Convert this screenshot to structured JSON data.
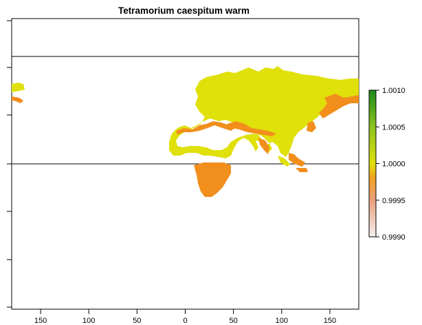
{
  "title": "Tetramorium caespitum warm",
  "colors": {
    "low": "#f5eef0",
    "mid_low": "#e9a07c",
    "orange": "#f28e1c",
    "yellow": "#e0e00a",
    "green_mid": "#8bc41e",
    "green_high": "#1a8a1a",
    "frame": "#000000"
  },
  "chart_data": {
    "type": "heatmap",
    "x_ticks": [
      "150",
      "100",
      "50",
      "0",
      "50",
      "100",
      "150"
    ],
    "x_tick_values": [
      -150,
      -100,
      -50,
      0,
      50,
      100,
      150
    ],
    "xlim": [
      -180,
      180
    ],
    "ylim": [
      -90,
      90
    ],
    "horizontal_lines": [
      0,
      60
    ],
    "legend": {
      "ticks": [
        "1.0010",
        "1.0005",
        "1.0000",
        "0.9995",
        "0.9990"
      ],
      "tick_values": [
        1.001,
        1.0005,
        1.0,
        0.9995,
        0.999
      ],
      "range": [
        0.999,
        1.001
      ]
    },
    "regions": [
      {
        "name": "Eurasia / North Africa",
        "value": 1.0
      },
      {
        "name": "Southern Africa",
        "value": 0.9996
      },
      {
        "name": "Iberia / Mediterranean coasts",
        "value": 0.9996
      },
      {
        "name": "Middle East belt",
        "value": 0.9996
      },
      {
        "name": "South Asia / Himalaya margin",
        "value": 0.9996
      },
      {
        "name": "East Asia coast / Japan",
        "value": 0.9996
      },
      {
        "name": "Alaska",
        "value": 1.0
      },
      {
        "name": "Alaska south coast",
        "value": 0.9996
      }
    ]
  }
}
